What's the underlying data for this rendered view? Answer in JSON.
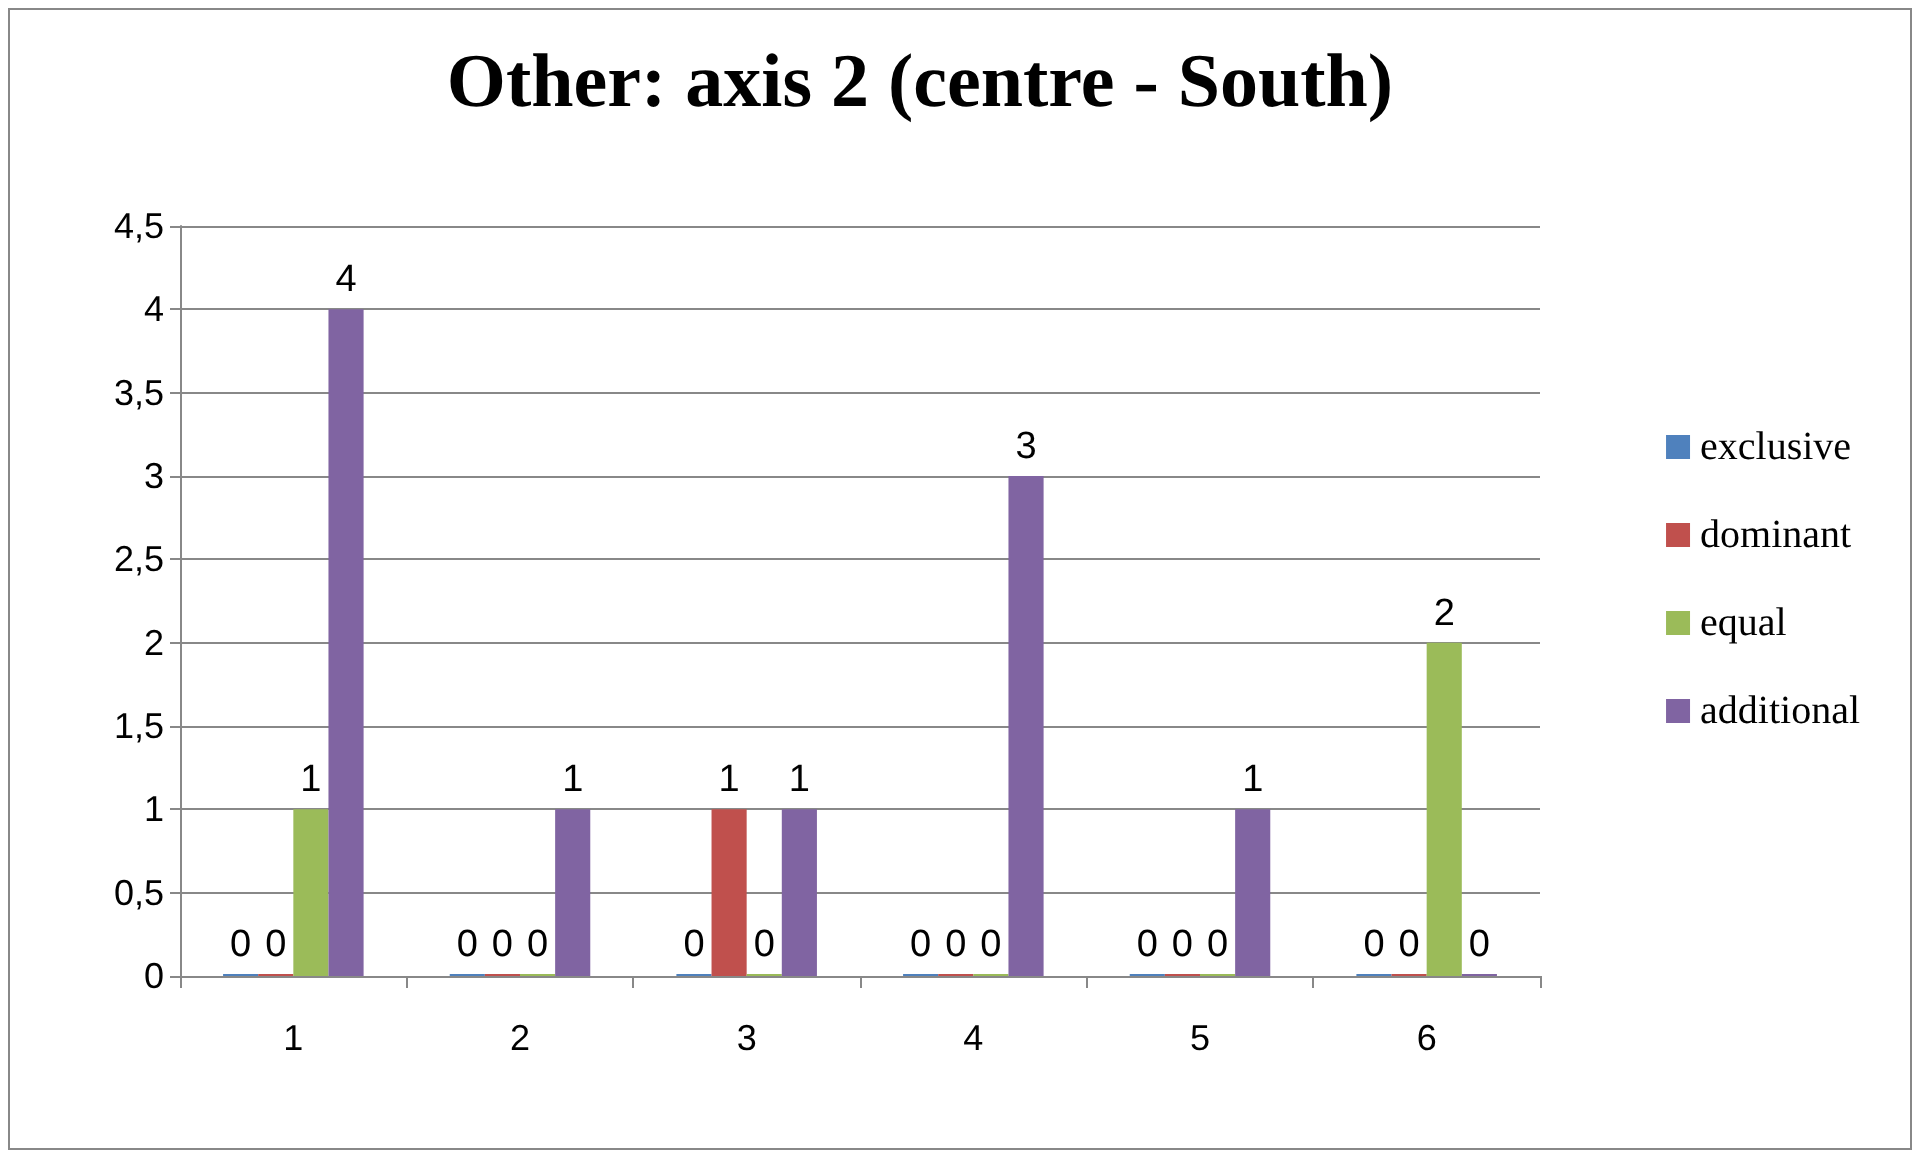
{
  "chart_data": {
    "type": "bar",
    "title": "Other: axis 2 (centre - South)",
    "categories": [
      "1",
      "2",
      "3",
      "4",
      "5",
      "6"
    ],
    "series": [
      {
        "name": "exclusive",
        "color": "#4f81bd",
        "values": [
          0,
          0,
          0,
          0,
          0,
          0
        ]
      },
      {
        "name": "dominant",
        "color": "#c0504d",
        "values": [
          0,
          0,
          1,
          0,
          0,
          0
        ]
      },
      {
        "name": "equal",
        "color": "#9bbb59",
        "values": [
          1,
          0,
          0,
          0,
          0,
          2
        ]
      },
      {
        "name": "additional",
        "color": "#8064a2",
        "values": [
          4,
          1,
          1,
          3,
          1,
          0
        ]
      }
    ],
    "ylim": [
      0,
      4.5
    ],
    "yticks": [
      0,
      {
        "value": 0.5,
        "label": "0,5"
      },
      1,
      {
        "value": 1.5,
        "label": "1,5"
      },
      2,
      {
        "value": 2.5,
        "label": "2,5"
      },
      3,
      {
        "value": 3.5,
        "label": "3,5"
      },
      4,
      {
        "value": 4.5,
        "label": "4,5"
      }
    ],
    "grid": "y",
    "legend": "right",
    "data_labels": true
  }
}
